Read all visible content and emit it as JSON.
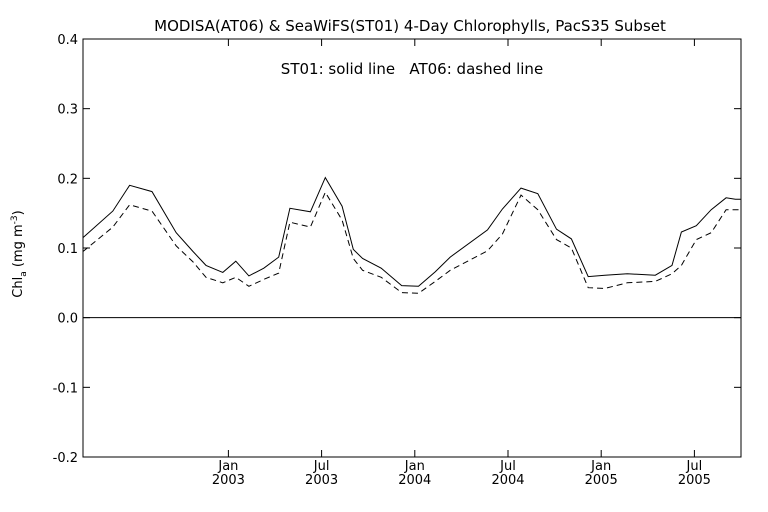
{
  "chart_data": {
    "type": "line",
    "title": "MODISA(AT06) & SeaWiFS(ST01) 4-Day Chlorophylls, PacS35 Subset",
    "annotation": "ST01: solid line   AT06: dashed line",
    "ylabel": {
      "main": "Chl",
      "sub": "a",
      "unit_open": " (mg m",
      "sup": "-3",
      "unit_close": ")"
    },
    "ylim": [
      -0.2,
      0.4
    ],
    "xlim": [
      2002.22,
      2005.75
    ],
    "y_ticks": [
      {
        "value": 0.4,
        "label": "0.4"
      },
      {
        "value": 0.3,
        "label": "0.3"
      },
      {
        "value": 0.2,
        "label": "0.2"
      },
      {
        "value": 0.1,
        "label": "0.1"
      },
      {
        "value": 0.0,
        "label": "0.0"
      },
      {
        "value": -0.1,
        "label": "-0.1"
      },
      {
        "value": -0.2,
        "label": "-0.2"
      }
    ],
    "x_ticks": [
      {
        "value": 2003.0,
        "month": "Jan",
        "year": "2003"
      },
      {
        "value": 2003.5,
        "month": "Jul",
        "year": "2003"
      },
      {
        "value": 2004.0,
        "month": "Jan",
        "year": "2004"
      },
      {
        "value": 2004.5,
        "month": "Jul",
        "year": "2004"
      },
      {
        "value": 2005.0,
        "month": "Jan",
        "year": "2005"
      },
      {
        "value": 2005.5,
        "month": "Jul",
        "year": "2005"
      }
    ],
    "reference_line": 0.0,
    "series": [
      {
        "name": "ST01",
        "style": "solid",
        "x": [
          2002.22,
          2002.38,
          2002.47,
          2002.59,
          2002.72,
          2002.81,
          2002.88,
          2002.97,
          2003.04,
          2003.11,
          2003.19,
          2003.27,
          2003.33,
          2003.44,
          2003.52,
          2003.61,
          2003.67,
          2003.72,
          2003.82,
          2003.93,
          2004.02,
          2004.11,
          2004.19,
          2004.39,
          2004.47,
          2004.57,
          2004.66,
          2004.76,
          2004.84,
          2004.93,
          2005.02,
          2005.14,
          2005.29,
          2005.38,
          2005.43,
          2005.51,
          2005.59,
          2005.67,
          2005.72,
          2005.75
        ],
        "values": [
          0.115,
          0.153,
          0.19,
          0.181,
          0.122,
          0.095,
          0.075,
          0.065,
          0.081,
          0.06,
          0.071,
          0.087,
          0.157,
          0.152,
          0.201,
          0.16,
          0.098,
          0.085,
          0.071,
          0.046,
          0.045,
          0.066,
          0.087,
          0.126,
          0.156,
          0.186,
          0.178,
          0.127,
          0.113,
          0.059,
          0.061,
          0.063,
          0.061,
          0.075,
          0.123,
          0.132,
          0.155,
          0.172,
          0.17,
          0.17
        ]
      },
      {
        "name": "AT06",
        "style": "dashed",
        "x": [
          2002.22,
          2002.38,
          2002.47,
          2002.59,
          2002.72,
          2002.81,
          2002.88,
          2002.97,
          2003.04,
          2003.11,
          2003.19,
          2003.27,
          2003.33,
          2003.44,
          2003.52,
          2003.61,
          2003.67,
          2003.72,
          2003.82,
          2003.93,
          2004.02,
          2004.11,
          2004.19,
          2004.39,
          2004.47,
          2004.57,
          2004.66,
          2004.76,
          2004.84,
          2004.93,
          2005.02,
          2005.14,
          2005.29,
          2005.38,
          2005.43,
          2005.51,
          2005.59,
          2005.67,
          2005.72,
          2005.75
        ],
        "values": [
          0.095,
          0.13,
          0.162,
          0.153,
          0.103,
          0.08,
          0.058,
          0.05,
          0.058,
          0.045,
          0.055,
          0.064,
          0.137,
          0.13,
          0.18,
          0.14,
          0.085,
          0.068,
          0.058,
          0.036,
          0.035,
          0.052,
          0.068,
          0.096,
          0.12,
          0.176,
          0.155,
          0.112,
          0.1,
          0.043,
          0.042,
          0.05,
          0.052,
          0.063,
          0.075,
          0.112,
          0.122,
          0.155,
          0.155,
          0.155
        ]
      }
    ]
  }
}
